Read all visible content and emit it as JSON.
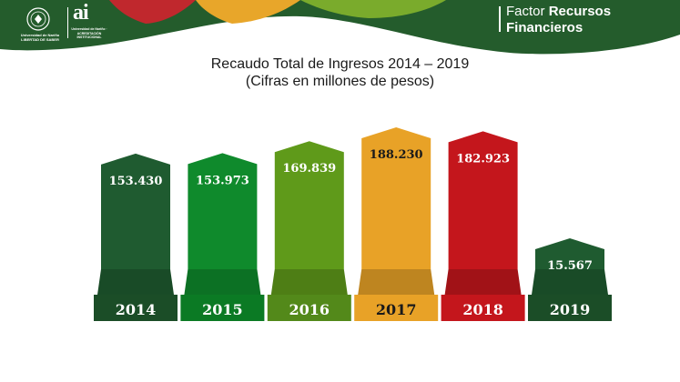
{
  "header": {
    "university_name": "Universidad de Nariño",
    "university_motto": "LIBERTAD DE SABER",
    "ai_logo": "ai",
    "ai_logo_caption": "Universidad de Nariño · ACREDITACIÓN INSTITUCIONAL",
    "factor_prefix": "Factor",
    "factor_name_line1": "Recursos",
    "factor_name_line2": "Financieros",
    "colors": {
      "dark_green": "#1d5d2d",
      "green": "#6a9a1f",
      "red": "#c0282d",
      "orange": "#e8a62a"
    }
  },
  "chart_data": {
    "type": "bar",
    "title": "Recaudo Total de Ingresos 2014 – 2019",
    "subtitle": "(Cifras en millones de pesos)",
    "xlabel": "",
    "ylabel": "",
    "categories": [
      "2014",
      "2015",
      "2016",
      "2017",
      "2018",
      "2019"
    ],
    "values": [
      153430,
      153973,
      169839,
      188230,
      182923,
      15567
    ],
    "value_labels": [
      "153.430",
      "153.973",
      "169.839",
      "188.230",
      "182.923",
      "15.567"
    ],
    "colors": [
      "#1f5b30",
      "#0f8a2c",
      "#5f9a1a",
      "#e8a227",
      "#c4161c",
      "#1f5b30"
    ],
    "base_colors": [
      "#1b4d27",
      "#0b7a24",
      "#53891a",
      "#e8a227",
      "#c4161c",
      "#1b4d27"
    ],
    "value_label_colors": [
      "#ffffff",
      "#ffffff",
      "#ffffff",
      "#1a1a1a",
      "#ffffff",
      "#ffffff"
    ],
    "category_label_colors": [
      "#ffffff",
      "#ffffff",
      "#ffffff",
      "#1a1a1a",
      "#ffffff",
      "#ffffff"
    ],
    "grid": false,
    "legend": "none"
  }
}
